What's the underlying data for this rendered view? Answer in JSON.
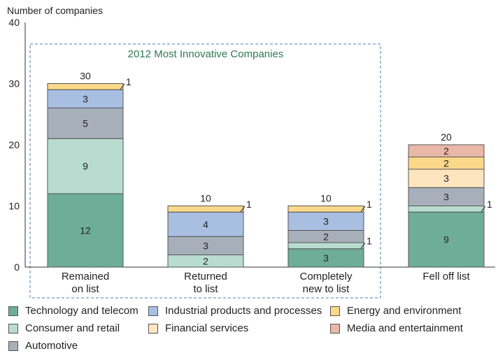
{
  "chart_data": {
    "type": "bar",
    "stacked": true,
    "title": "2012 Most Innovative Companies",
    "ylabel": "Number of companies",
    "xlabel": "",
    "ylim": [
      0,
      40
    ],
    "yticks": [
      0,
      10,
      20,
      30,
      40
    ],
    "categories": [
      [
        "Remained",
        "on list"
      ],
      [
        "Returned",
        "to list"
      ],
      [
        "Completely",
        "new to list"
      ],
      [
        "Fell off list"
      ]
    ],
    "totals": [
      30,
      10,
      10,
      20
    ],
    "series": [
      {
        "name": "Technology and telecom",
        "color": "#6eae98",
        "values": [
          12,
          0,
          3,
          9
        ]
      },
      {
        "name": "Consumer and retail",
        "color": "#b8dcd0",
        "values": [
          9,
          2,
          1,
          1
        ]
      },
      {
        "name": "Automotive",
        "color": "#a7b0ba",
        "values": [
          5,
          3,
          2,
          3
        ]
      },
      {
        "name": "Industrial products and processes",
        "color": "#a9bfe2",
        "values": [
          3,
          4,
          3,
          0
        ]
      },
      {
        "name": "Financial services",
        "color": "#fde6bf",
        "values": [
          0,
          0,
          0,
          3
        ]
      },
      {
        "name": "Energy and environment",
        "color": "#fcd98a",
        "values": [
          1,
          1,
          1,
          2
        ]
      },
      {
        "name": "Media and entertainment",
        "color": "#eab8a8",
        "values": [
          0,
          0,
          0,
          2
        ]
      }
    ],
    "legend": {
      "position": "bottom"
    }
  }
}
